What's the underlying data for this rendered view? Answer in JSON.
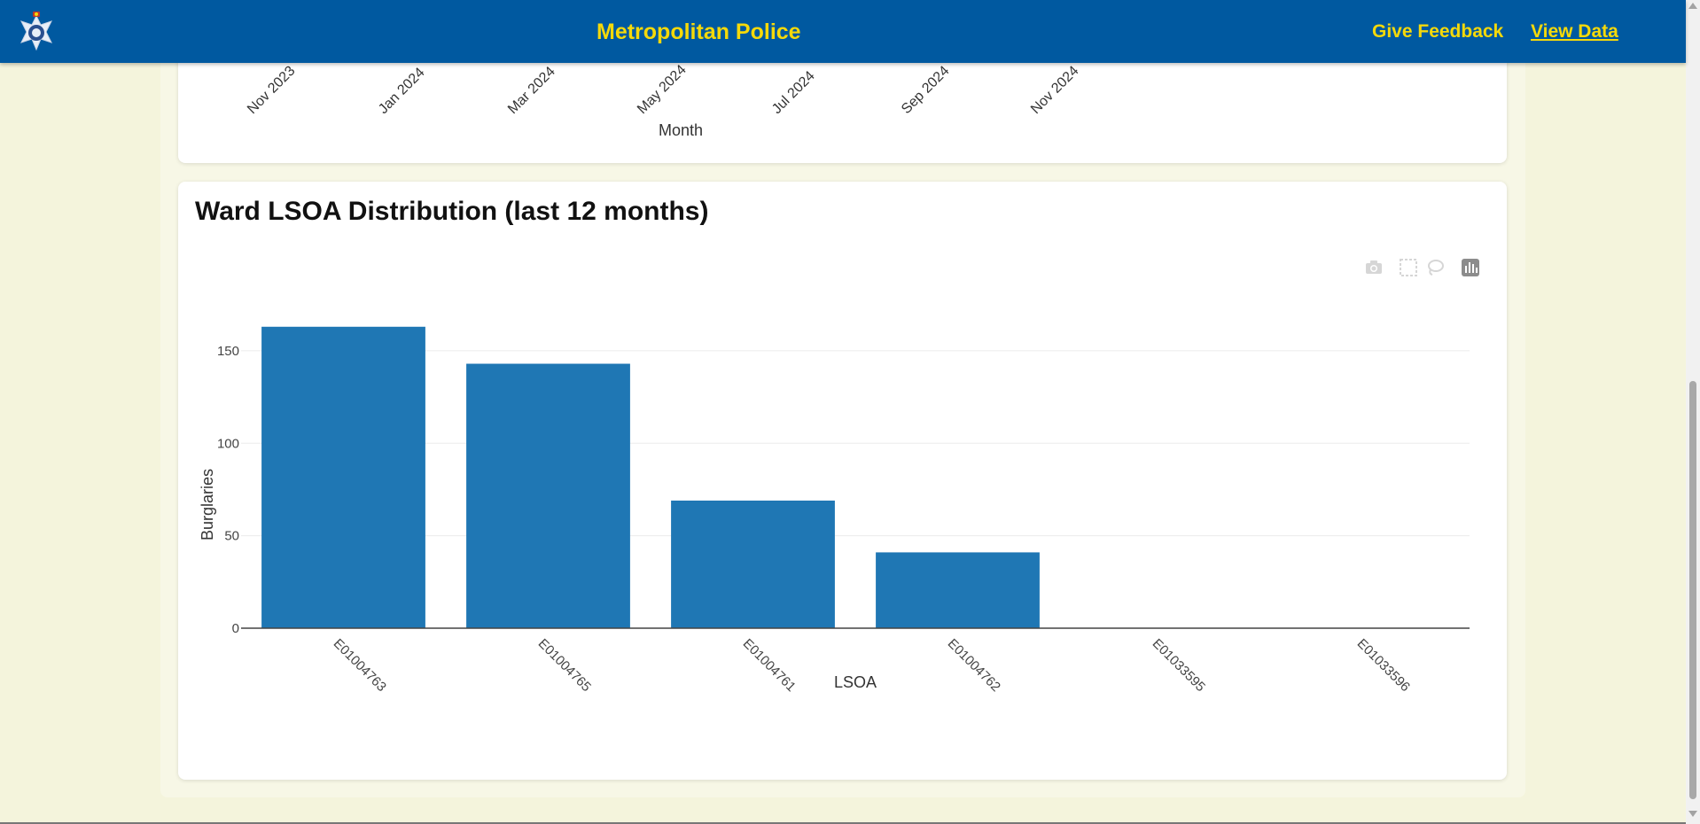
{
  "header": {
    "title": "Metropolitan Police",
    "links": [
      {
        "label": "Give Feedback"
      },
      {
        "label": "View Data"
      }
    ],
    "colors": {
      "bar": "#0059a0",
      "text": "#f5d90a"
    }
  },
  "top_chart": {
    "x_ticks": [
      "Nov 2023",
      "Jan 2024",
      "Mar 2024",
      "May 2024",
      "Jul 2024",
      "Sep 2024",
      "Nov 2024"
    ],
    "xlabel": "Month"
  },
  "lsoa_card": {
    "title": "Ward LSOA Distribution (last 12 months)"
  },
  "modebar": {
    "icons": [
      "camera-icon",
      "box-select-icon",
      "lasso-select-icon",
      "plotly-logo-icon"
    ]
  },
  "chart_data": {
    "type": "bar",
    "categories": [
      "E01004763",
      "E01004765",
      "E01004761",
      "E01004762",
      "E01033595",
      "E01033596"
    ],
    "values": [
      163,
      143,
      69,
      41,
      0,
      0
    ],
    "xlabel": "LSOA",
    "ylabel": "Burglaries",
    "yticks": [
      0,
      50,
      100,
      150
    ],
    "ylim": [
      0,
      172
    ],
    "grid": true,
    "bar_color": "#1f77b4"
  }
}
